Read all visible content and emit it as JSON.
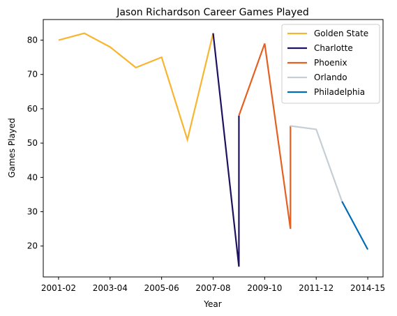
{
  "chart_data": {
    "type": "line",
    "title": "Jason Richardson Career Games Played",
    "xlabel": "Year",
    "ylabel": "Games Played",
    "xlim": [
      0,
      12
    ],
    "ylim": [
      11,
      86
    ],
    "x_ticks": [
      {
        "pos": 0,
        "label": "2001-02"
      },
      {
        "pos": 2,
        "label": "2003-04"
      },
      {
        "pos": 4,
        "label": "2005-06"
      },
      {
        "pos": 6,
        "label": "2007-08"
      },
      {
        "pos": 8,
        "label": "2009-10"
      },
      {
        "pos": 10,
        "label": "2011-12"
      },
      {
        "pos": 12,
        "label": "2014-15"
      }
    ],
    "y_ticks": [
      20,
      30,
      40,
      50,
      60,
      70,
      80
    ],
    "grid": false,
    "legend_position": "top-right",
    "series": [
      {
        "name": "Golden State",
        "color": "#F8B52F",
        "points": [
          [
            0,
            80
          ],
          [
            1,
            82
          ],
          [
            2,
            78
          ],
          [
            3,
            72
          ],
          [
            4,
            75
          ],
          [
            5,
            51
          ],
          [
            6,
            82
          ]
        ]
      },
      {
        "name": "Charlotte",
        "color": "#1D1160",
        "points": [
          [
            6,
            82
          ],
          [
            7,
            14
          ],
          [
            7,
            58
          ]
        ]
      },
      {
        "name": "Phoenix",
        "color": "#E56020",
        "points": [
          [
            7,
            58
          ],
          [
            8,
            79
          ],
          [
            9,
            25
          ],
          [
            9,
            55
          ]
        ]
      },
      {
        "name": "Orlando",
        "color": "#C4CED4",
        "points": [
          [
            9,
            55
          ],
          [
            10,
            54
          ],
          [
            11,
            33
          ]
        ]
      },
      {
        "name": "Philadelphia",
        "color": "#006BB6",
        "points": [
          [
            11,
            33
          ],
          [
            12,
            19
          ]
        ]
      }
    ]
  }
}
